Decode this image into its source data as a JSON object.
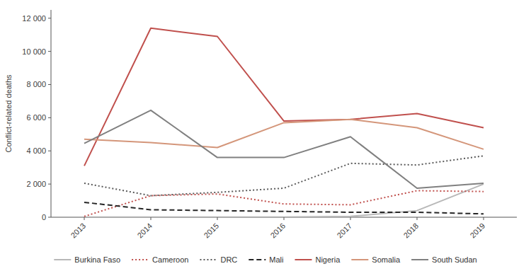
{
  "chart_data": {
    "type": "line",
    "y_label": "Conflict-related deaths",
    "x": [
      2013,
      2014,
      2015,
      2016,
      2017,
      2018,
      2019
    ],
    "xlim": [
      2012.5,
      2019.5
    ],
    "xticks": [
      2013,
      2014,
      2015,
      2016,
      2017,
      2018,
      2019
    ],
    "ylim": [
      0,
      12500
    ],
    "yticks": [
      0,
      {
        "value": 2000,
        "label": "2 000"
      },
      {
        "value": 4000,
        "label": "4 000"
      },
      {
        "value": 6000,
        "label": "6 000"
      },
      {
        "value": 8000,
        "label": "8 000"
      },
      {
        "value": 10000,
        "label": "10 000"
      },
      {
        "value": 12000,
        "label": "12 000"
      }
    ],
    "grid": false,
    "legend": "bottom",
    "series": [
      {
        "name": "Burkina Faso",
        "color": "#b8b8b8",
        "line_style": "solid",
        "values": [
          10,
          10,
          10,
          10,
          50,
          400,
          2000
        ]
      },
      {
        "name": "Cameroon",
        "color": "#c0504d",
        "line_style": "dotted",
        "values": [
          50,
          1300,
          1400,
          800,
          750,
          1600,
          1550
        ]
      },
      {
        "name": "DRC",
        "color": "#595959",
        "line_style": "dotted",
        "values": [
          2050,
          1300,
          1500,
          1750,
          3250,
          3150,
          3700
        ]
      },
      {
        "name": "Mali",
        "color": "#262626",
        "line_style": "dashed",
        "values": [
          900,
          450,
          400,
          350,
          300,
          300,
          200
        ]
      },
      {
        "name": "Nigeria",
        "color": "#c0504d",
        "line_style": "solid",
        "values": [
          3100,
          11400,
          10900,
          5800,
          5900,
          6250,
          5400
        ]
      },
      {
        "name": "Somalia",
        "color": "#d4967a",
        "line_style": "solid",
        "values": [
          4700,
          4500,
          4200,
          5700,
          5900,
          5400,
          4100
        ]
      },
      {
        "name": "South Sudan",
        "color": "#808080",
        "line_style": "solid",
        "values": [
          4450,
          6450,
          3600,
          3600,
          4850,
          1750,
          2050
        ]
      }
    ]
  }
}
